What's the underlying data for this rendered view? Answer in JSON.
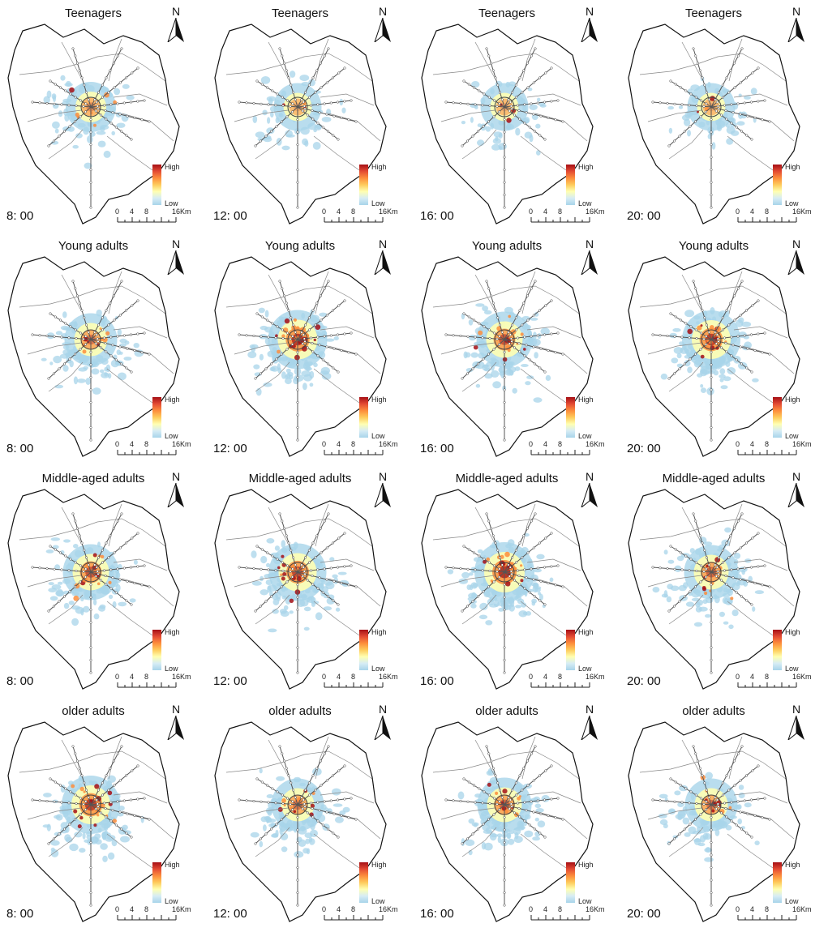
{
  "panels": [
    {
      "title": "Teenagers",
      "time": "8: 00",
      "intensity": 0.3
    },
    {
      "title": "Teenagers",
      "time": "12: 00",
      "intensity": 0.15
    },
    {
      "title": "Teenagers",
      "time": "16: 00",
      "intensity": 0.15
    },
    {
      "title": "Teenagers",
      "time": "20: 00",
      "intensity": 0.15
    },
    {
      "title": "Young adults",
      "time": "8: 00",
      "intensity": 0.45
    },
    {
      "title": "Young adults",
      "time": "12: 00",
      "intensity": 0.85
    },
    {
      "title": "Young adults",
      "time": "16: 00",
      "intensity": 0.65
    },
    {
      "title": "Young adults",
      "time": "20: 00",
      "intensity": 0.8
    },
    {
      "title": "Middle-aged adults",
      "time": "8: 00",
      "intensity": 0.65
    },
    {
      "title": "Middle-aged adults",
      "time": "12: 00",
      "intensity": 0.75
    },
    {
      "title": "Middle-aged adults",
      "time": "16: 00",
      "intensity": 0.9
    },
    {
      "title": "Middle-aged adults",
      "time": "20: 00",
      "intensity": 0.55
    },
    {
      "title": "older adults",
      "time": "8: 00",
      "intensity": 0.8
    },
    {
      "title": "older adults",
      "time": "12: 00",
      "intensity": 0.45
    },
    {
      "title": "older adults",
      "time": "16: 00",
      "intensity": 0.55
    },
    {
      "title": "older adults",
      "time": "20: 00",
      "intensity": 0.45
    }
  ],
  "legend": {
    "high": "High",
    "low": "Low"
  },
  "north_label": "N",
  "scale_labels": [
    "0",
    "4",
    "8",
    "16Km"
  ],
  "colors": {
    "high": "#a50f15",
    "mid": "#fd8d3c",
    "low": "#a8d4ea",
    "boundary": "#111111",
    "district": "#888888",
    "metro": "#555555"
  }
}
